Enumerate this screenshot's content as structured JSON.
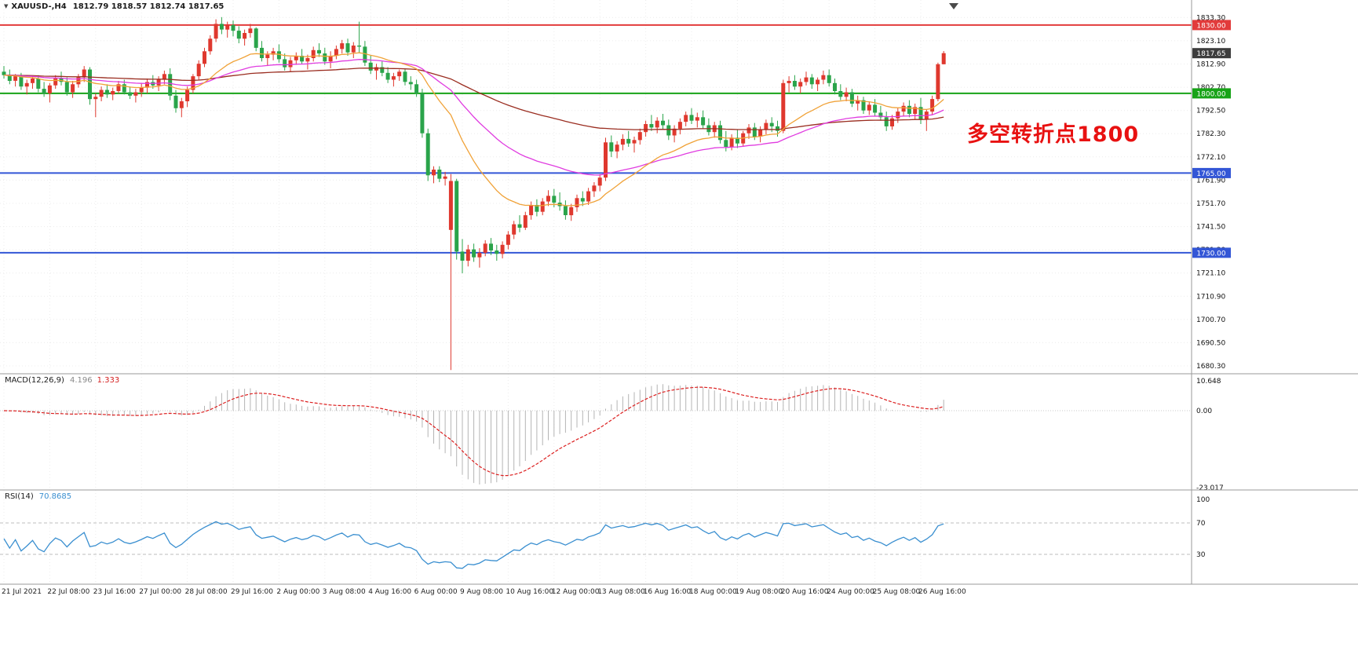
{
  "header": {
    "symbol_tf": "XAUUSD-,H4",
    "ohlc": "1812.79 1818.57 1812.74 1817.65"
  },
  "chart_data": {
    "type": "candlestick",
    "symbol": "XAUUSD-",
    "timeframe": "H4",
    "annotation": {
      "text": "多空转折点1800",
      "color": "#e81111"
    },
    "colors": {
      "up": "#df382e",
      "down": "#2aa44a",
      "ma_fast": "#f0a238",
      "ma_mid": "#e03ce0",
      "ma_slow": "#9a2d20",
      "macd_hist": "#b4b4b4",
      "macd_signal": "#dc1f1f",
      "rsi": "#3a8fd0",
      "grid": "#ececec",
      "separator": "#9a9a9a"
    },
    "price_axis_ticks": [
      "1833.30",
      "1823.10",
      "1812.90",
      "1802.70",
      "1792.50",
      "1782.30",
      "1772.10",
      "1761.90",
      "1751.70",
      "1741.50",
      "1731.30",
      "1721.10",
      "1710.90",
      "1700.70",
      "1690.50",
      "1680.30"
    ],
    "hlines": [
      {
        "price": 1830.0,
        "label": "1830.00",
        "color": "#e23b3b",
        "width": 2
      },
      {
        "price": 1800.0,
        "label": "1800.00",
        "color": "#17a317",
        "width": 2
      },
      {
        "price": 1765.0,
        "label": "1765.00",
        "color": "#3356d6",
        "width": 2
      },
      {
        "price": 1730.0,
        "label": "1730.00",
        "color": "#3356d6",
        "width": 2
      }
    ],
    "current_price": {
      "value": 1817.65,
      "label": "1817.65",
      "badge_bg": "#3d3d3d"
    },
    "moving_averages": [
      {
        "period": 120,
        "color_key": "ma_slow"
      },
      {
        "period": 45,
        "color_key": "ma_mid"
      },
      {
        "period": 20,
        "color_key": "ma_fast"
      }
    ],
    "macd": {
      "label": "MACD(12,26,9)",
      "value_main": "4.196",
      "value_signal": "1.333",
      "fast": 12,
      "slow": 26,
      "signal": 9,
      "axis": [
        "10.648",
        "0.00",
        "-23.017"
      ]
    },
    "rsi": {
      "label": "RSI(14)",
      "value": "70.8685",
      "period": 14,
      "levels": [
        70,
        30
      ],
      "axis": [
        "100",
        "70",
        "30"
      ]
    },
    "time_labels": [
      {
        "t": "21 Jul 2021",
        "b": 0
      },
      {
        "t": "22 Jul 08:00",
        "b": 8
      },
      {
        "t": "23 Jul 16:00",
        "b": 16
      },
      {
        "t": "27 Jul 00:00",
        "b": 24
      },
      {
        "t": "28 Jul 08:00",
        "b": 32
      },
      {
        "t": "29 Jul 16:00",
        "b": 40
      },
      {
        "t": "2 Aug 00:00",
        "b": 48
      },
      {
        "t": "3 Aug 08:00",
        "b": 56
      },
      {
        "t": "4 Aug 16:00",
        "b": 64
      },
      {
        "t": "6 Aug 00:00",
        "b": 72
      },
      {
        "t": "9 Aug 08:00",
        "b": 80
      },
      {
        "t": "10 Aug 16:00",
        "b": 88
      },
      {
        "t": "12 Aug 00:00",
        "b": 96
      },
      {
        "t": "13 Aug 08:00",
        "b": 104
      },
      {
        "t": "16 Aug 16:00",
        "b": 112
      },
      {
        "t": "18 Aug 00:00",
        "b": 120
      },
      {
        "t": "19 Aug 08:00",
        "b": 128
      },
      {
        "t": "20 Aug 16:00",
        "b": 136
      },
      {
        "t": "24 Aug 00:00",
        "b": 144
      },
      {
        "t": "25 Aug 08:00",
        "b": 152
      },
      {
        "t": "26 Aug 16:00",
        "b": 160
      }
    ],
    "candles": [
      [
        1809.5,
        1812.0,
        1806.5,
        1808.0
      ],
      [
        1808.0,
        1810.5,
        1804.0,
        1805.5
      ],
      [
        1805.5,
        1808.5,
        1803.0,
        1807.5
      ],
      [
        1807.5,
        1809.0,
        1801.5,
        1803.0
      ],
      [
        1803.0,
        1806.0,
        1799.5,
        1804.5
      ],
      [
        1804.5,
        1807.5,
        1802.0,
        1806.5
      ],
      [
        1806.5,
        1808.0,
        1800.5,
        1802.0
      ],
      [
        1802.0,
        1805.0,
        1798.5,
        1800.0
      ],
      [
        1800.0,
        1804.5,
        1796.0,
        1803.5
      ],
      [
        1803.5,
        1808.0,
        1802.0,
        1806.5
      ],
      [
        1806.5,
        1809.5,
        1803.5,
        1805.0
      ],
      [
        1805.0,
        1807.0,
        1799.0,
        1800.5
      ],
      [
        1800.5,
        1805.5,
        1798.0,
        1804.0
      ],
      [
        1804.0,
        1808.5,
        1802.5,
        1807.0
      ],
      [
        1807.0,
        1812.0,
        1805.0,
        1810.5
      ],
      [
        1810.5,
        1811.5,
        1795.0,
        1797.5
      ],
      [
        1797.5,
        1800.0,
        1789.5,
        1798.5
      ],
      [
        1798.5,
        1803.0,
        1796.5,
        1801.5
      ],
      [
        1801.5,
        1804.0,
        1798.0,
        1799.5
      ],
      [
        1799.5,
        1802.5,
        1797.0,
        1801.0
      ],
      [
        1801.0,
        1805.5,
        1800.0,
        1804.0
      ],
      [
        1804.0,
        1806.0,
        1799.5,
        1800.5
      ],
      [
        1800.5,
        1803.0,
        1797.5,
        1799.0
      ],
      [
        1799.0,
        1802.0,
        1796.0,
        1800.5
      ],
      [
        1800.5,
        1804.5,
        1798.5,
        1802.5
      ],
      [
        1802.5,
        1806.5,
        1800.0,
        1805.0
      ],
      [
        1805.0,
        1808.0,
        1802.0,
        1803.5
      ],
      [
        1803.5,
        1807.5,
        1801.0,
        1806.0
      ],
      [
        1806.0,
        1810.0,
        1804.0,
        1808.5
      ],
      [
        1808.5,
        1811.0,
        1797.0,
        1799.0
      ],
      [
        1799.0,
        1801.5,
        1791.5,
        1793.5
      ],
      [
        1793.5,
        1798.0,
        1789.5,
        1796.5
      ],
      [
        1796.5,
        1803.0,
        1794.0,
        1801.5
      ],
      [
        1801.5,
        1808.5,
        1800.0,
        1807.5
      ],
      [
        1807.5,
        1814.5,
        1806.0,
        1813.0
      ],
      [
        1813.0,
        1820.0,
        1811.5,
        1818.5
      ],
      [
        1818.5,
        1825.5,
        1817.0,
        1824.0
      ],
      [
        1824.0,
        1832.5,
        1822.5,
        1830.5
      ],
      [
        1830.5,
        1833.5,
        1826.0,
        1828.0
      ],
      [
        1828.0,
        1831.5,
        1824.5,
        1830.0
      ],
      [
        1830.0,
        1832.0,
        1825.0,
        1827.5
      ],
      [
        1827.5,
        1829.5,
        1822.0,
        1824.0
      ],
      [
        1824.0,
        1828.0,
        1821.0,
        1826.5
      ],
      [
        1826.5,
        1830.5,
        1824.5,
        1828.5
      ],
      [
        1828.5,
        1829.0,
        1818.5,
        1820.0
      ],
      [
        1820.0,
        1823.0,
        1814.0,
        1815.5
      ],
      [
        1815.5,
        1818.5,
        1812.0,
        1817.0
      ],
      [
        1817.0,
        1820.0,
        1814.5,
        1818.5
      ],
      [
        1818.5,
        1821.5,
        1813.5,
        1815.0
      ],
      [
        1815.0,
        1817.5,
        1810.0,
        1811.5
      ],
      [
        1811.5,
        1816.0,
        1809.5,
        1814.5
      ],
      [
        1814.5,
        1818.0,
        1812.5,
        1816.5
      ],
      [
        1816.5,
        1819.5,
        1813.0,
        1814.0
      ],
      [
        1814.0,
        1817.0,
        1810.5,
        1815.5
      ],
      [
        1815.5,
        1820.5,
        1814.0,
        1819.0
      ],
      [
        1819.0,
        1822.0,
        1816.0,
        1817.5
      ],
      [
        1817.5,
        1820.0,
        1812.5,
        1814.0
      ],
      [
        1814.0,
        1818.5,
        1811.0,
        1816.5
      ],
      [
        1816.5,
        1821.0,
        1815.0,
        1819.5
      ],
      [
        1819.5,
        1823.5,
        1817.5,
        1822.0
      ],
      [
        1822.0,
        1824.0,
        1816.5,
        1818.0
      ],
      [
        1818.0,
        1822.5,
        1815.5,
        1821.0
      ],
      [
        1821.0,
        1831.5,
        1818.0,
        1820.5
      ],
      [
        1820.5,
        1823.0,
        1812.0,
        1813.5
      ],
      [
        1813.5,
        1816.5,
        1808.5,
        1810.0
      ],
      [
        1810.0,
        1813.0,
        1806.0,
        1811.5
      ],
      [
        1811.5,
        1814.0,
        1807.5,
        1809.0
      ],
      [
        1809.0,
        1811.5,
        1804.5,
        1806.0
      ],
      [
        1806.0,
        1809.0,
        1803.0,
        1807.5
      ],
      [
        1807.5,
        1810.5,
        1805.5,
        1809.5
      ],
      [
        1809.5,
        1811.0,
        1803.5,
        1805.0
      ],
      [
        1805.0,
        1807.5,
        1801.5,
        1804.0
      ],
      [
        1804.0,
        1806.0,
        1798.5,
        1800.0
      ],
      [
        1800.0,
        1802.0,
        1780.5,
        1782.5
      ],
      [
        1782.5,
        1784.5,
        1761.5,
        1764.0
      ],
      [
        1764.0,
        1768.0,
        1760.5,
        1766.5
      ],
      [
        1766.5,
        1768.0,
        1761.0,
        1762.5
      ],
      [
        1762.5,
        1765.5,
        1759.5,
        1763.5
      ],
      [
        1740.0,
        1764.5,
        1678.5,
        1761.5
      ],
      [
        1761.5,
        1762.5,
        1727.0,
        1730.5
      ],
      [
        1730.5,
        1736.0,
        1721.0,
        1726.5
      ],
      [
        1726.5,
        1733.5,
        1724.0,
        1731.5
      ],
      [
        1731.5,
        1734.0,
        1726.0,
        1728.0
      ],
      [
        1728.0,
        1732.0,
        1723.5,
        1730.0
      ],
      [
        1730.0,
        1735.5,
        1728.5,
        1734.0
      ],
      [
        1734.0,
        1736.5,
        1729.0,
        1731.0
      ],
      [
        1731.0,
        1733.5,
        1726.5,
        1729.5
      ],
      [
        1729.5,
        1735.0,
        1727.5,
        1733.5
      ],
      [
        1733.5,
        1739.5,
        1731.5,
        1738.0
      ],
      [
        1738.0,
        1744.0,
        1736.0,
        1742.5
      ],
      [
        1742.5,
        1746.5,
        1739.0,
        1741.0
      ],
      [
        1741.0,
        1748.0,
        1740.0,
        1746.5
      ],
      [
        1746.5,
        1752.5,
        1744.5,
        1751.0
      ],
      [
        1751.0,
        1753.5,
        1746.0,
        1748.0
      ],
      [
        1748.0,
        1754.0,
        1746.5,
        1752.5
      ],
      [
        1752.5,
        1757.5,
        1750.5,
        1755.0
      ],
      [
        1755.0,
        1758.0,
        1750.0,
        1752.0
      ],
      [
        1752.0,
        1756.5,
        1748.5,
        1750.5
      ],
      [
        1750.5,
        1753.0,
        1744.5,
        1746.5
      ],
      [
        1746.5,
        1751.5,
        1744.0,
        1750.0
      ],
      [
        1750.0,
        1755.5,
        1748.0,
        1754.0
      ],
      [
        1754.0,
        1757.0,
        1750.5,
        1752.5
      ],
      [
        1752.5,
        1758.5,
        1751.0,
        1757.0
      ],
      [
        1757.0,
        1761.0,
        1754.5,
        1759.5
      ],
      [
        1759.5,
        1764.5,
        1757.0,
        1763.0
      ],
      [
        1763.0,
        1780.5,
        1761.5,
        1778.5
      ],
      [
        1778.5,
        1781.5,
        1772.0,
        1774.5
      ],
      [
        1774.5,
        1779.0,
        1771.5,
        1777.5
      ],
      [
        1777.5,
        1782.0,
        1775.0,
        1780.0
      ],
      [
        1780.0,
        1783.5,
        1776.5,
        1778.0
      ],
      [
        1778.0,
        1781.0,
        1774.0,
        1779.5
      ],
      [
        1779.5,
        1784.5,
        1777.5,
        1783.0
      ],
      [
        1783.0,
        1788.0,
        1781.0,
        1786.5
      ],
      [
        1786.5,
        1790.5,
        1783.5,
        1785.0
      ],
      [
        1785.0,
        1789.5,
        1782.5,
        1788.0
      ],
      [
        1788.0,
        1791.0,
        1784.0,
        1786.0
      ],
      [
        1786.0,
        1788.5,
        1779.5,
        1781.5
      ],
      [
        1781.5,
        1786.0,
        1778.5,
        1784.5
      ],
      [
        1784.5,
        1789.0,
        1782.0,
        1787.5
      ],
      [
        1787.5,
        1792.0,
        1785.5,
        1790.5
      ],
      [
        1790.5,
        1793.5,
        1786.5,
        1788.0
      ],
      [
        1788.0,
        1791.5,
        1785.0,
        1789.5
      ],
      [
        1789.5,
        1792.5,
        1784.5,
        1786.0
      ],
      [
        1786.0,
        1789.0,
        1781.5,
        1783.0
      ],
      [
        1783.0,
        1787.5,
        1780.5,
        1786.0
      ],
      [
        1786.0,
        1788.0,
        1778.0,
        1779.5
      ],
      [
        1779.5,
        1783.5,
        1774.5,
        1776.5
      ],
      [
        1776.5,
        1782.0,
        1775.0,
        1780.5
      ],
      [
        1780.5,
        1784.0,
        1776.0,
        1778.0
      ],
      [
        1778.0,
        1783.5,
        1776.5,
        1782.5
      ],
      [
        1782.5,
        1786.5,
        1780.0,
        1785.0
      ],
      [
        1785.0,
        1787.0,
        1779.5,
        1781.0
      ],
      [
        1781.0,
        1785.5,
        1778.5,
        1784.0
      ],
      [
        1784.0,
        1788.5,
        1782.0,
        1787.0
      ],
      [
        1787.0,
        1789.5,
        1783.0,
        1785.5
      ],
      [
        1785.5,
        1788.0,
        1781.0,
        1783.5
      ],
      [
        1783.5,
        1806.0,
        1782.5,
        1804.5
      ],
      [
        1804.5,
        1807.5,
        1800.5,
        1805.5
      ],
      [
        1805.5,
        1808.0,
        1801.5,
        1803.0
      ],
      [
        1803.0,
        1806.5,
        1800.0,
        1805.0
      ],
      [
        1805.0,
        1809.5,
        1803.5,
        1807.0
      ],
      [
        1807.0,
        1808.5,
        1802.0,
        1804.0
      ],
      [
        1804.0,
        1807.0,
        1801.0,
        1806.0
      ],
      [
        1806.0,
        1810.0,
        1804.0,
        1808.0
      ],
      [
        1808.0,
        1810.5,
        1803.0,
        1804.5
      ],
      [
        1804.5,
        1806.5,
        1799.5,
        1801.0
      ],
      [
        1801.0,
        1804.0,
        1797.0,
        1798.5
      ],
      [
        1798.5,
        1802.5,
        1796.5,
        1800.5
      ],
      [
        1800.5,
        1802.0,
        1794.0,
        1795.5
      ],
      [
        1795.5,
        1799.0,
        1792.5,
        1797.0
      ],
      [
        1797.0,
        1798.5,
        1791.0,
        1792.5
      ],
      [
        1792.5,
        1796.5,
        1790.5,
        1795.0
      ],
      [
        1795.0,
        1797.5,
        1790.0,
        1791.5
      ],
      [
        1791.5,
        1794.5,
        1788.0,
        1789.5
      ],
      [
        1789.5,
        1792.0,
        1783.5,
        1785.5
      ],
      [
        1785.5,
        1790.5,
        1784.0,
        1789.0
      ],
      [
        1789.0,
        1793.5,
        1787.0,
        1792.0
      ],
      [
        1792.0,
        1796.0,
        1790.0,
        1794.5
      ],
      [
        1794.5,
        1797.0,
        1789.5,
        1791.0
      ],
      [
        1791.0,
        1795.5,
        1788.5,
        1794.0
      ],
      [
        1794.0,
        1798.0,
        1786.5,
        1788.5
      ],
      [
        1788.5,
        1793.0,
        1783.5,
        1792.0
      ],
      [
        1792.0,
        1799.0,
        1790.5,
        1797.5
      ],
      [
        1797.5,
        1813.5,
        1796.5,
        1812.8
      ],
      [
        1812.79,
        1818.57,
        1812.74,
        1817.65
      ]
    ]
  }
}
